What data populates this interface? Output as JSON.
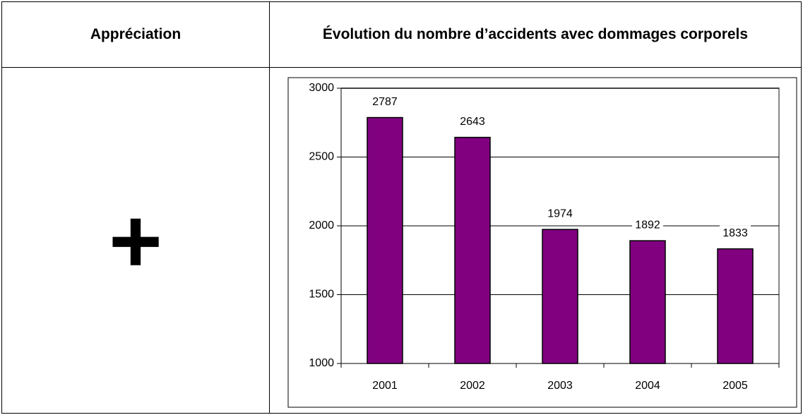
{
  "table": {
    "headers": [
      "Appréciation",
      "Évolution du nombre d’accidents avec dommages corporels"
    ],
    "rows": [
      [
        "+"
      ]
    ]
  },
  "chart_data": {
    "type": "bar",
    "categories": [
      "2001",
      "2002",
      "2003",
      "2004",
      "2005"
    ],
    "values": [
      2787,
      2643,
      1974,
      1892,
      1833
    ],
    "color": "#800080",
    "ylim": [
      1000,
      3000
    ],
    "yticks": [
      1000,
      1500,
      2000,
      2500,
      3000
    ],
    "grid": true
  }
}
